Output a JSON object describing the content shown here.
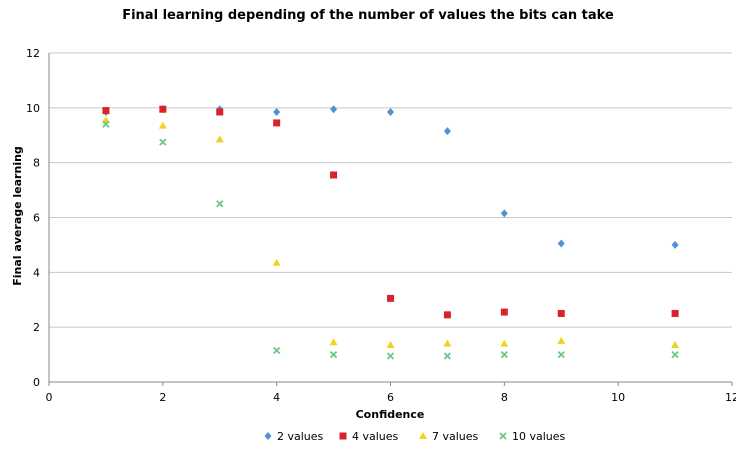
{
  "chart_data": {
    "type": "scatter",
    "title": "Final learning depending of the number of values the bits can take",
    "xlabel": "Confidence",
    "ylabel": "Final average learning",
    "xlim": [
      0,
      12
    ],
    "ylim": [
      0,
      12
    ],
    "xticks": [
      "0",
      "2",
      "4",
      "6",
      "8",
      "10",
      "12"
    ],
    "yticks": [
      "0",
      "2",
      "4",
      "6",
      "8",
      "10",
      "12"
    ],
    "grid": "horizontal",
    "legend_position": "bottom",
    "series": [
      {
        "name": "2 values",
        "marker": "diamond",
        "color": "#4f90d6",
        "points": [
          [
            1,
            9.85
          ],
          [
            2,
            9.95
          ],
          [
            3,
            9.95
          ],
          [
            4,
            9.85
          ],
          [
            5,
            9.95
          ],
          [
            6,
            9.85
          ],
          [
            7,
            9.15
          ],
          [
            8,
            6.15
          ],
          [
            9,
            5.05
          ],
          [
            11,
            5.0
          ]
        ]
      },
      {
        "name": "4 values",
        "marker": "square",
        "color": "#d8232a",
        "points": [
          [
            1,
            9.9
          ],
          [
            2,
            9.95
          ],
          [
            3,
            9.85
          ],
          [
            4,
            9.45
          ],
          [
            5,
            7.55
          ],
          [
            6,
            3.05
          ],
          [
            7,
            2.45
          ],
          [
            8,
            2.55
          ],
          [
            9,
            2.5
          ],
          [
            11,
            2.5
          ]
        ]
      },
      {
        "name": "7 values",
        "marker": "triangle",
        "color": "#f2d21b",
        "points": [
          [
            1,
            9.55
          ],
          [
            2,
            9.35
          ],
          [
            3,
            8.85
          ],
          [
            4,
            4.35
          ],
          [
            5,
            1.45
          ],
          [
            6,
            1.35
          ],
          [
            7,
            1.4
          ],
          [
            8,
            1.4
          ],
          [
            9,
            1.5
          ],
          [
            11,
            1.35
          ]
        ]
      },
      {
        "name": "10 values",
        "marker": "x",
        "color": "#6fc48a",
        "points": [
          [
            1,
            9.4
          ],
          [
            2,
            8.75
          ],
          [
            3,
            6.5
          ],
          [
            4,
            1.15
          ],
          [
            5,
            1.0
          ],
          [
            6,
            0.95
          ],
          [
            7,
            0.95
          ],
          [
            8,
            1.0
          ],
          [
            9,
            1.0
          ],
          [
            11,
            1.0
          ]
        ]
      }
    ]
  }
}
